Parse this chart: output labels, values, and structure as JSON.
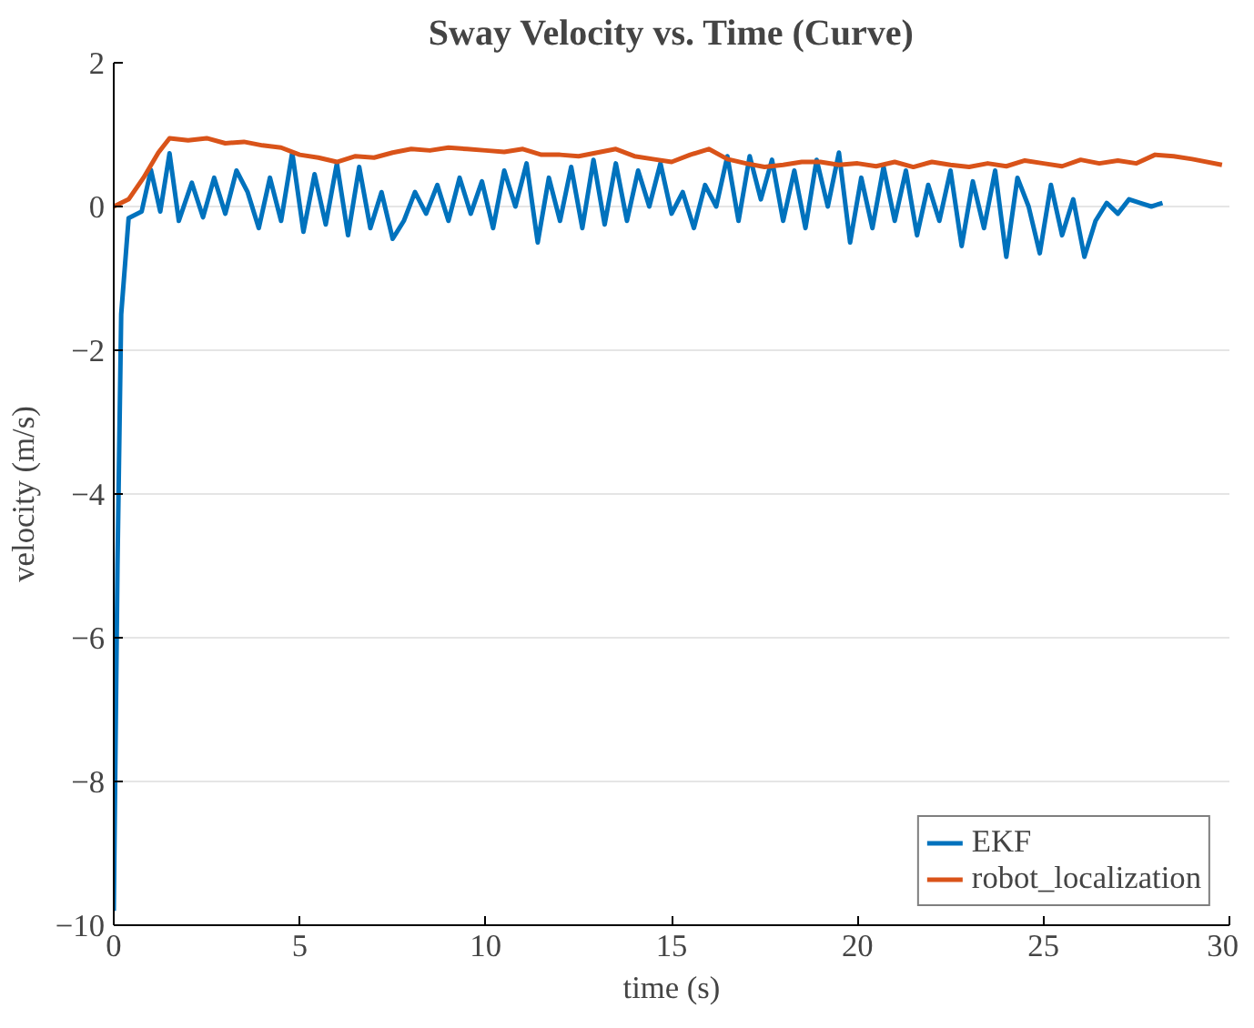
{
  "chart_data": {
    "type": "line",
    "title": "Sway Velocity vs. Time (Curve)",
    "xlabel": "time (s)",
    "ylabel": "velocity (m/s)",
    "xlim": [
      0,
      30
    ],
    "ylim": [
      -10,
      2
    ],
    "xticks": [
      0,
      5,
      10,
      15,
      20,
      25,
      30
    ],
    "yticks": [
      -10,
      -8,
      -6,
      -4,
      -2,
      0,
      2
    ],
    "grid": "y",
    "legend": "bottom right",
    "series": [
      {
        "name": "EKF",
        "color": "#0072bd",
        "x": [
          0,
          0.1,
          0.2,
          0.4,
          0.75,
          1.0,
          1.25,
          1.5,
          1.75,
          2.1,
          2.4,
          2.7,
          3.0,
          3.3,
          3.6,
          3.9,
          4.2,
          4.5,
          4.8,
          5.1,
          5.4,
          5.7,
          6.0,
          6.3,
          6.6,
          6.9,
          7.2,
          7.5,
          7.8,
          8.1,
          8.4,
          8.7,
          9.0,
          9.3,
          9.6,
          9.9,
          10.2,
          10.5,
          10.8,
          11.1,
          11.4,
          11.7,
          12.0,
          12.3,
          12.6,
          12.9,
          13.2,
          13.5,
          13.8,
          14.1,
          14.4,
          14.7,
          15.0,
          15.3,
          15.6,
          15.9,
          16.2,
          16.5,
          16.8,
          17.1,
          17.4,
          17.7,
          18.0,
          18.3,
          18.6,
          18.9,
          19.2,
          19.5,
          19.8,
          20.1,
          20.4,
          20.7,
          21.0,
          21.3,
          21.6,
          21.9,
          22.2,
          22.5,
          22.8,
          23.1,
          23.4,
          23.7,
          24.0,
          24.3,
          24.6,
          24.9,
          25.2,
          25.5,
          25.8,
          26.1,
          26.4,
          26.7,
          27.0,
          27.3,
          27.6,
          27.9,
          28.2
        ],
        "values": [
          -9.8,
          -5.0,
          -1.5,
          -0.16,
          -0.07,
          0.51,
          -0.07,
          0.74,
          -0.2,
          0.33,
          -0.15,
          0.4,
          -0.1,
          0.5,
          0.2,
          -0.3,
          0.4,
          -0.2,
          0.75,
          -0.35,
          0.45,
          -0.25,
          0.6,
          -0.4,
          0.55,
          -0.3,
          0.2,
          -0.45,
          -0.2,
          0.2,
          -0.1,
          0.3,
          -0.2,
          0.4,
          -0.1,
          0.35,
          -0.3,
          0.5,
          0.0,
          0.6,
          -0.5,
          0.4,
          -0.2,
          0.55,
          -0.3,
          0.65,
          -0.25,
          0.6,
          -0.2,
          0.5,
          0.0,
          0.6,
          -0.1,
          0.2,
          -0.3,
          0.3,
          0.0,
          0.7,
          -0.2,
          0.7,
          0.1,
          0.65,
          -0.2,
          0.5,
          -0.3,
          0.65,
          0.0,
          0.75,
          -0.5,
          0.4,
          -0.3,
          0.55,
          -0.2,
          0.5,
          -0.4,
          0.3,
          -0.2,
          0.5,
          -0.55,
          0.35,
          -0.3,
          0.5,
          -0.7,
          0.4,
          0.0,
          -0.65,
          0.3,
          -0.4,
          0.1,
          -0.7,
          -0.2,
          0.05,
          -0.1,
          0.1,
          0.05,
          0.0,
          0.05
        ]
      },
      {
        "name": "robot_localization",
        "color": "#d95319",
        "x": [
          0,
          0.4,
          0.8,
          1.2,
          1.5,
          2.0,
          2.5,
          3.0,
          3.5,
          4.0,
          4.5,
          5.0,
          5.5,
          6.0,
          6.5,
          7.0,
          7.5,
          8.0,
          8.5,
          9.0,
          9.5,
          10.0,
          10.5,
          11.0,
          11.5,
          12.0,
          12.5,
          13.0,
          13.5,
          14.0,
          14.5,
          15.0,
          15.5,
          16.0,
          16.5,
          17.0,
          17.5,
          18.0,
          18.5,
          19.0,
          19.5,
          20.0,
          20.5,
          21.0,
          21.5,
          22.0,
          22.5,
          23.0,
          23.5,
          24.0,
          24.5,
          25.0,
          25.5,
          26.0,
          26.5,
          27.0,
          27.5,
          28.0,
          28.5,
          29.0,
          29.8
        ],
        "values": [
          0.0,
          0.1,
          0.4,
          0.75,
          0.95,
          0.92,
          0.95,
          0.88,
          0.9,
          0.85,
          0.82,
          0.72,
          0.68,
          0.62,
          0.7,
          0.68,
          0.75,
          0.8,
          0.78,
          0.82,
          0.8,
          0.78,
          0.76,
          0.8,
          0.72,
          0.72,
          0.7,
          0.75,
          0.8,
          0.7,
          0.66,
          0.62,
          0.72,
          0.8,
          0.66,
          0.6,
          0.55,
          0.58,
          0.62,
          0.62,
          0.58,
          0.6,
          0.56,
          0.62,
          0.55,
          0.62,
          0.58,
          0.55,
          0.6,
          0.56,
          0.64,
          0.6,
          0.56,
          0.65,
          0.6,
          0.64,
          0.6,
          0.72,
          0.7,
          0.66,
          0.58
        ]
      }
    ]
  }
}
